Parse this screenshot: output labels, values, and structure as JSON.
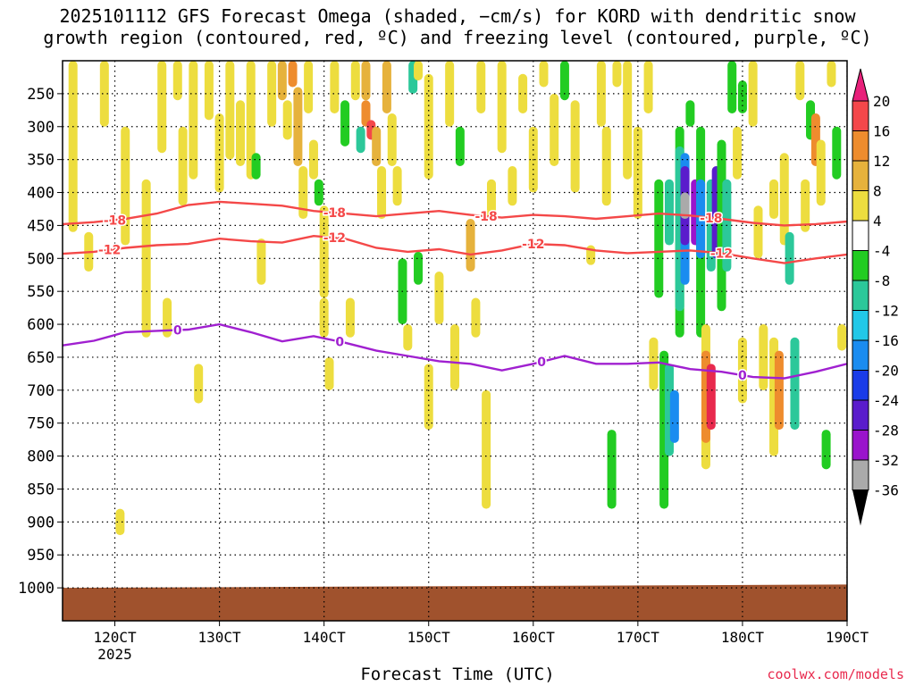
{
  "title_line1": "2025101112 GFS Forecast Omega (shaded, −cm/s) for KORD with dendritic snow",
  "title_line2": "growth region (contoured, red, ºC) and freezing level (contoured, purple, ºC)",
  "watermark": "coolwx.com/models",
  "chart_data": {
    "type": "heatmap",
    "title": "2025101112 GFS Forecast Omega (shaded, −cm/s) for KORD with dendritic snow growth region (contoured, red, ºC) and freezing level (contoured, purple, ºC)",
    "xlabel": "Forecast Time (UTC)",
    "ylabel": "",
    "xlim": [
      115,
      190
    ],
    "ylim": [
      1050,
      200
    ],
    "x_ticks": [
      {
        "value": 120,
        "label": "120CT",
        "sublabel": "2025"
      },
      {
        "value": 130,
        "label": "130CT"
      },
      {
        "value": 140,
        "label": "140CT"
      },
      {
        "value": 150,
        "label": "150CT"
      },
      {
        "value": 160,
        "label": "160CT"
      },
      {
        "value": 170,
        "label": "170CT"
      },
      {
        "value": 180,
        "label": "180CT"
      },
      {
        "value": 190,
        "label": "190CT"
      }
    ],
    "y_ticks": [
      "250",
      "300",
      "350",
      "400",
      "450",
      "500",
      "550",
      "600",
      "650",
      "700",
      "750",
      "800",
      "850",
      "900",
      "950",
      "1000"
    ],
    "grid": true,
    "colorbar": {
      "labels": [
        "20",
        "16",
        "12",
        "8",
        "4",
        "-4",
        "-8",
        "-12",
        "-16",
        "-20",
        "-24",
        "-28",
        "-32",
        "-36"
      ],
      "colors": [
        "#e8294d",
        "#f4474a",
        "#ee8c2e",
        "#e6b23c",
        "#eddd3f",
        "#ffffff",
        "#22cc22",
        "#2cc89a",
        "#22c8e8",
        "#1a8cf0",
        "#1a3ce8",
        "#5a1ccc",
        "#9a14cc",
        "#aaaaaa",
        "#000000"
      ],
      "top_arrow_color": "#e8207a",
      "bottom_arrow_color": "#000000"
    },
    "ground_color": "#a0522d",
    "contours": [
      {
        "value": -18,
        "label": "-18",
        "color": "#f44848",
        "points": [
          [
            115,
            448
          ],
          [
            118,
            445
          ],
          [
            121,
            440
          ],
          [
            124,
            432
          ],
          [
            127,
            419
          ],
          [
            130,
            414
          ],
          [
            133,
            417
          ],
          [
            136,
            420
          ],
          [
            139,
            428
          ],
          [
            142,
            432
          ],
          [
            145,
            436
          ],
          [
            148,
            432
          ],
          [
            151,
            428
          ],
          [
            154,
            434
          ],
          [
            157,
            438
          ],
          [
            160,
            434
          ],
          [
            163,
            436
          ],
          [
            166,
            440
          ],
          [
            169,
            436
          ],
          [
            172,
            432
          ],
          [
            175,
            435
          ],
          [
            178,
            440
          ],
          [
            181,
            446
          ],
          [
            184,
            450
          ],
          [
            187,
            448
          ],
          [
            190,
            444
          ]
        ],
        "label_x": [
          120,
          141,
          155.5,
          177
        ]
      },
      {
        "value": -12,
        "label": "-12",
        "color": "#f44848",
        "points": [
          [
            115,
            493
          ],
          [
            118,
            490
          ],
          [
            121,
            484
          ],
          [
            124,
            480
          ],
          [
            127,
            478
          ],
          [
            130,
            470
          ],
          [
            133,
            474
          ],
          [
            136,
            476
          ],
          [
            139,
            466
          ],
          [
            142,
            470
          ],
          [
            145,
            484
          ],
          [
            148,
            490
          ],
          [
            151,
            486
          ],
          [
            154,
            494
          ],
          [
            157,
            488
          ],
          [
            160,
            478
          ],
          [
            163,
            480
          ],
          [
            166,
            488
          ],
          [
            169,
            492
          ],
          [
            172,
            490
          ],
          [
            175,
            488
          ],
          [
            178,
            492
          ],
          [
            181,
            500
          ],
          [
            184,
            507
          ],
          [
            187,
            500
          ],
          [
            190,
            494
          ]
        ],
        "label_x": [
          119.5,
          141,
          160,
          178
        ]
      },
      {
        "value": 0,
        "label": "0",
        "color": "#a020d0",
        "points": [
          [
            115,
            632
          ],
          [
            118,
            625
          ],
          [
            121,
            612
          ],
          [
            124,
            610
          ],
          [
            127,
            608
          ],
          [
            130,
            600
          ],
          [
            133,
            612
          ],
          [
            136,
            626
          ],
          [
            139,
            618
          ],
          [
            142,
            628
          ],
          [
            145,
            640
          ],
          [
            148,
            648
          ],
          [
            151,
            656
          ],
          [
            154,
            660
          ],
          [
            157,
            670
          ],
          [
            160,
            660
          ],
          [
            163,
            648
          ],
          [
            166,
            660
          ],
          [
            169,
            660
          ],
          [
            172,
            658
          ],
          [
            175,
            668
          ],
          [
            178,
            672
          ],
          [
            181,
            680
          ],
          [
            184,
            682
          ],
          [
            187,
            672
          ],
          [
            190,
            660
          ]
        ],
        "label_x": [
          126,
          141.5,
          160.8,
          180
        ]
      }
    ],
    "omega_cells": [
      {
        "t": 116,
        "p0": 200,
        "p1": 460,
        "v": 4
      },
      {
        "t": 117.5,
        "p0": 460,
        "p1": 520,
        "v": 4
      },
      {
        "t": 119,
        "p0": 200,
        "p1": 300,
        "v": 4
      },
      {
        "t": 120.5,
        "p0": 880,
        "p1": 920,
        "v": 4
      },
      {
        "t": 121,
        "p0": 300,
        "p1": 480,
        "v": 4
      },
      {
        "t": 123,
        "p0": 380,
        "p1": 620,
        "v": 4
      },
      {
        "t": 124.5,
        "p0": 200,
        "p1": 340,
        "v": 4
      },
      {
        "t": 125,
        "p0": 560,
        "p1": 620,
        "v": 4
      },
      {
        "t": 126,
        "p0": 200,
        "p1": 260,
        "v": 4
      },
      {
        "t": 126.5,
        "p0": 300,
        "p1": 420,
        "v": 4
      },
      {
        "t": 127.5,
        "p0": 200,
        "p1": 380,
        "v": 4
      },
      {
        "t": 128,
        "p0": 660,
        "p1": 720,
        "v": 4
      },
      {
        "t": 129,
        "p0": 200,
        "p1": 290,
        "v": 4
      },
      {
        "t": 130,
        "p0": 280,
        "p1": 400,
        "v": 4
      },
      {
        "t": 131,
        "p0": 200,
        "p1": 350,
        "v": 4
      },
      {
        "t": 132,
        "p0": 260,
        "p1": 360,
        "v": 4
      },
      {
        "t": 133,
        "p0": 200,
        "p1": 380,
        "v": 4
      },
      {
        "t": 133.5,
        "p0": 340,
        "p1": 380,
        "v": -8
      },
      {
        "t": 134,
        "p0": 470,
        "p1": 540,
        "v": 4
      },
      {
        "t": 135,
        "p0": 200,
        "p1": 300,
        "v": 4
      },
      {
        "t": 136,
        "p0": 200,
        "p1": 260,
        "v": 8
      },
      {
        "t": 136.5,
        "p0": 260,
        "p1": 320,
        "v": 4
      },
      {
        "t": 137,
        "p0": 200,
        "p1": 240,
        "v": 12
      },
      {
        "t": 137.5,
        "p0": 240,
        "p1": 360,
        "v": 8
      },
      {
        "t": 138,
        "p0": 360,
        "p1": 440,
        "v": 4
      },
      {
        "t": 138.5,
        "p0": 200,
        "p1": 280,
        "v": 4
      },
      {
        "t": 139,
        "p0": 320,
        "p1": 380,
        "v": 4
      },
      {
        "t": 139.5,
        "p0": 380,
        "p1": 420,
        "v": -8
      },
      {
        "t": 140,
        "p0": 420,
        "p1": 560,
        "v": 4
      },
      {
        "t": 140,
        "p0": 560,
        "p1": 620,
        "v": 4
      },
      {
        "t": 140.5,
        "p0": 650,
        "p1": 700,
        "v": 4
      },
      {
        "t": 141,
        "p0": 200,
        "p1": 280,
        "v": 4
      },
      {
        "t": 142,
        "p0": 260,
        "p1": 330,
        "v": -8
      },
      {
        "t": 142.5,
        "p0": 560,
        "p1": 620,
        "v": 4
      },
      {
        "t": 143,
        "p0": 200,
        "p1": 260,
        "v": 4
      },
      {
        "t": 143.5,
        "p0": 300,
        "p1": 340,
        "v": -12
      },
      {
        "t": 144,
        "p0": 200,
        "p1": 260,
        "v": 8
      },
      {
        "t": 144,
        "p0": 260,
        "p1": 300,
        "v": 12
      },
      {
        "t": 144.5,
        "p0": 290,
        "p1": 320,
        "v": 16
      },
      {
        "t": 145,
        "p0": 300,
        "p1": 360,
        "v": 8
      },
      {
        "t": 145.5,
        "p0": 360,
        "p1": 440,
        "v": 4
      },
      {
        "t": 146,
        "p0": 200,
        "p1": 280,
        "v": 8
      },
      {
        "t": 146.5,
        "p0": 280,
        "p1": 360,
        "v": 4
      },
      {
        "t": 147,
        "p0": 360,
        "p1": 420,
        "v": 4
      },
      {
        "t": 147.5,
        "p0": 500,
        "p1": 600,
        "v": -8
      },
      {
        "t": 148,
        "p0": 600,
        "p1": 640,
        "v": 4
      },
      {
        "t": 148.5,
        "p0": 200,
        "p1": 250,
        "v": -12
      },
      {
        "t": 149,
        "p0": 200,
        "p1": 230,
        "v": 4
      },
      {
        "t": 149,
        "p0": 490,
        "p1": 540,
        "v": -8
      },
      {
        "t": 150,
        "p0": 220,
        "p1": 380,
        "v": 4
      },
      {
        "t": 150,
        "p0": 660,
        "p1": 760,
        "v": 4
      },
      {
        "t": 151,
        "p0": 520,
        "p1": 600,
        "v": 4
      },
      {
        "t": 152,
        "p0": 200,
        "p1": 300,
        "v": 4
      },
      {
        "t": 152.5,
        "p0": 600,
        "p1": 700,
        "v": 4
      },
      {
        "t": 153,
        "p0": 300,
        "p1": 360,
        "v": -8
      },
      {
        "t": 154,
        "p0": 440,
        "p1": 520,
        "v": 8
      },
      {
        "t": 154.5,
        "p0": 560,
        "p1": 620,
        "v": 4
      },
      {
        "t": 155,
        "p0": 200,
        "p1": 280,
        "v": 4
      },
      {
        "t": 155.5,
        "p0": 700,
        "p1": 880,
        "v": 4
      },
      {
        "t": 156,
        "p0": 380,
        "p1": 440,
        "v": 4
      },
      {
        "t": 157,
        "p0": 200,
        "p1": 340,
        "v": 4
      },
      {
        "t": 158,
        "p0": 360,
        "p1": 420,
        "v": 4
      },
      {
        "t": 159,
        "p0": 220,
        "p1": 280,
        "v": 4
      },
      {
        "t": 160,
        "p0": 300,
        "p1": 400,
        "v": 4
      },
      {
        "t": 161,
        "p0": 200,
        "p1": 240,
        "v": 4
      },
      {
        "t": 162,
        "p0": 250,
        "p1": 360,
        "v": 4
      },
      {
        "t": 163,
        "p0": 200,
        "p1": 260,
        "v": -8
      },
      {
        "t": 164,
        "p0": 260,
        "p1": 400,
        "v": 4
      },
      {
        "t": 165.5,
        "p0": 480,
        "p1": 510,
        "v": 4
      },
      {
        "t": 166.5,
        "p0": 200,
        "p1": 300,
        "v": 4
      },
      {
        "t": 167,
        "p0": 300,
        "p1": 420,
        "v": 4
      },
      {
        "t": 167.5,
        "p0": 760,
        "p1": 880,
        "v": -8
      },
      {
        "t": 168,
        "p0": 200,
        "p1": 240,
        "v": 4
      },
      {
        "t": 169,
        "p0": 200,
        "p1": 380,
        "v": 4
      },
      {
        "t": 170,
        "p0": 300,
        "p1": 440,
        "v": 4
      },
      {
        "t": 171,
        "p0": 200,
        "p1": 280,
        "v": 4
      },
      {
        "t": 171.5,
        "p0": 620,
        "p1": 700,
        "v": 4
      },
      {
        "t": 172,
        "p0": 380,
        "p1": 560,
        "v": -8
      },
      {
        "t": 172.5,
        "p0": 640,
        "p1": 880,
        "v": -8
      },
      {
        "t": 173,
        "p0": 380,
        "p1": 480,
        "v": -12
      },
      {
        "t": 173,
        "p0": 660,
        "p1": 800,
        "v": -12
      },
      {
        "t": 173.5,
        "p0": 700,
        "p1": 780,
        "v": -16
      },
      {
        "t": 174,
        "p0": 300,
        "p1": 620,
        "v": -8
      },
      {
        "t": 174,
        "p0": 330,
        "p1": 580,
        "v": -12
      },
      {
        "t": 174.5,
        "p0": 340,
        "p1": 540,
        "v": -16
      },
      {
        "t": 174.5,
        "p0": 360,
        "p1": 480,
        "v": -24
      },
      {
        "t": 174.5,
        "p0": 400,
        "p1": 440,
        "v": -32
      },
      {
        "t": 175,
        "p0": 260,
        "p1": 300,
        "v": -8
      },
      {
        "t": 175.5,
        "p0": 380,
        "p1": 480,
        "v": -28
      },
      {
        "t": 176,
        "p0": 300,
        "p1": 620,
        "v": -8
      },
      {
        "t": 176,
        "p0": 380,
        "p1": 500,
        "v": -16
      },
      {
        "t": 176.5,
        "p0": 600,
        "p1": 820,
        "v": 4
      },
      {
        "t": 176.5,
        "p0": 640,
        "p1": 780,
        "v": 12
      },
      {
        "t": 177,
        "p0": 660,
        "p1": 760,
        "v": 20
      },
      {
        "t": 177,
        "p0": 380,
        "p1": 520,
        "v": -12
      },
      {
        "t": 177.5,
        "p0": 360,
        "p1": 500,
        "v": -24
      },
      {
        "t": 178,
        "p0": 320,
        "p1": 580,
        "v": -8
      },
      {
        "t": 178.5,
        "p0": 380,
        "p1": 520,
        "v": -12
      },
      {
        "t": 179,
        "p0": 200,
        "p1": 280,
        "v": -8
      },
      {
        "t": 179.5,
        "p0": 300,
        "p1": 380,
        "v": 4
      },
      {
        "t": 180,
        "p0": 230,
        "p1": 280,
        "v": -8
      },
      {
        "t": 180,
        "p0": 620,
        "p1": 720,
        "v": 4
      },
      {
        "t": 181,
        "p0": 200,
        "p1": 300,
        "v": 4
      },
      {
        "t": 181.5,
        "p0": 420,
        "p1": 500,
        "v": 4
      },
      {
        "t": 182,
        "p0": 600,
        "p1": 700,
        "v": 4
      },
      {
        "t": 183,
        "p0": 380,
        "p1": 440,
        "v": 4
      },
      {
        "t": 183,
        "p0": 620,
        "p1": 800,
        "v": 4
      },
      {
        "t": 183.5,
        "p0": 640,
        "p1": 760,
        "v": 12
      },
      {
        "t": 184,
        "p0": 340,
        "p1": 480,
        "v": 4
      },
      {
        "t": 184.5,
        "p0": 460,
        "p1": 540,
        "v": -12
      },
      {
        "t": 185,
        "p0": 620,
        "p1": 760,
        "v": -12
      },
      {
        "t": 185.5,
        "p0": 200,
        "p1": 260,
        "v": 4
      },
      {
        "t": 186,
        "p0": 380,
        "p1": 460,
        "v": 4
      },
      {
        "t": 186.5,
        "p0": 260,
        "p1": 320,
        "v": -8
      },
      {
        "t": 187,
        "p0": 280,
        "p1": 360,
        "v": 12
      },
      {
        "t": 187.5,
        "p0": 320,
        "p1": 420,
        "v": 4
      },
      {
        "t": 188,
        "p0": 760,
        "p1": 820,
        "v": -8
      },
      {
        "t": 188.5,
        "p0": 200,
        "p1": 240,
        "v": 4
      },
      {
        "t": 189,
        "p0": 300,
        "p1": 380,
        "v": -8
      },
      {
        "t": 189.5,
        "p0": 600,
        "p1": 640,
        "v": 4
      }
    ]
  }
}
